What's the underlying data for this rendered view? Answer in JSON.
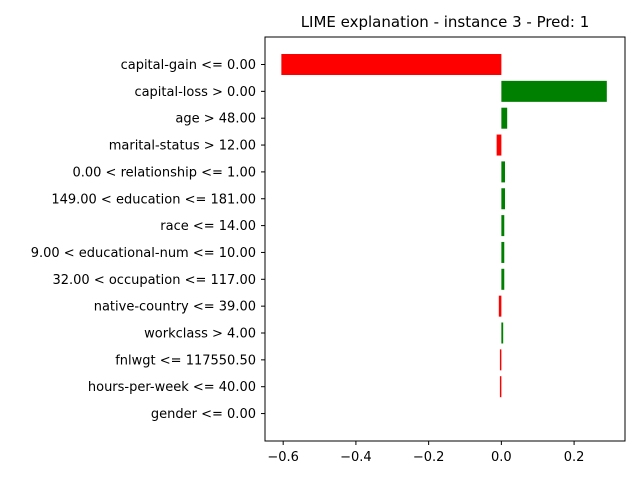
{
  "chart_data": {
    "type": "bar",
    "orientation": "horizontal",
    "title": "LIME explanation - instance 3 - Pred: 1",
    "xlabel": "",
    "ylabel": "",
    "xlim": [
      -0.65,
      0.34
    ],
    "xticks": [
      -0.6,
      -0.4,
      -0.2,
      0.0,
      0.2
    ],
    "xtick_labels": [
      "−0.6",
      "−0.4",
      "−0.2",
      "0.0",
      "0.2"
    ],
    "grid": false,
    "legend": "none",
    "positive_color": "#008000",
    "negative_color": "#ff0000",
    "categories": [
      "capital-gain <= 0.00",
      "capital-loss > 0.00",
      "age > 48.00",
      "marital-status > 12.00",
      "0.00 < relationship <= 1.00",
      "149.00 < education <= 181.00",
      "race <= 14.00",
      "9.00 < educational-num <= 10.00",
      "32.00 < occupation <= 117.00",
      "native-country <= 39.00",
      "workclass > 4.00",
      "fnlwgt <= 117550.50",
      "hours-per-week <= 40.00",
      "gender <= 0.00"
    ],
    "values": [
      -0.605,
      0.29,
      0.016,
      -0.013,
      0.01,
      0.01,
      0.008,
      0.008,
      0.008,
      -0.007,
      0.005,
      -0.004,
      -0.004,
      0.0
    ]
  }
}
